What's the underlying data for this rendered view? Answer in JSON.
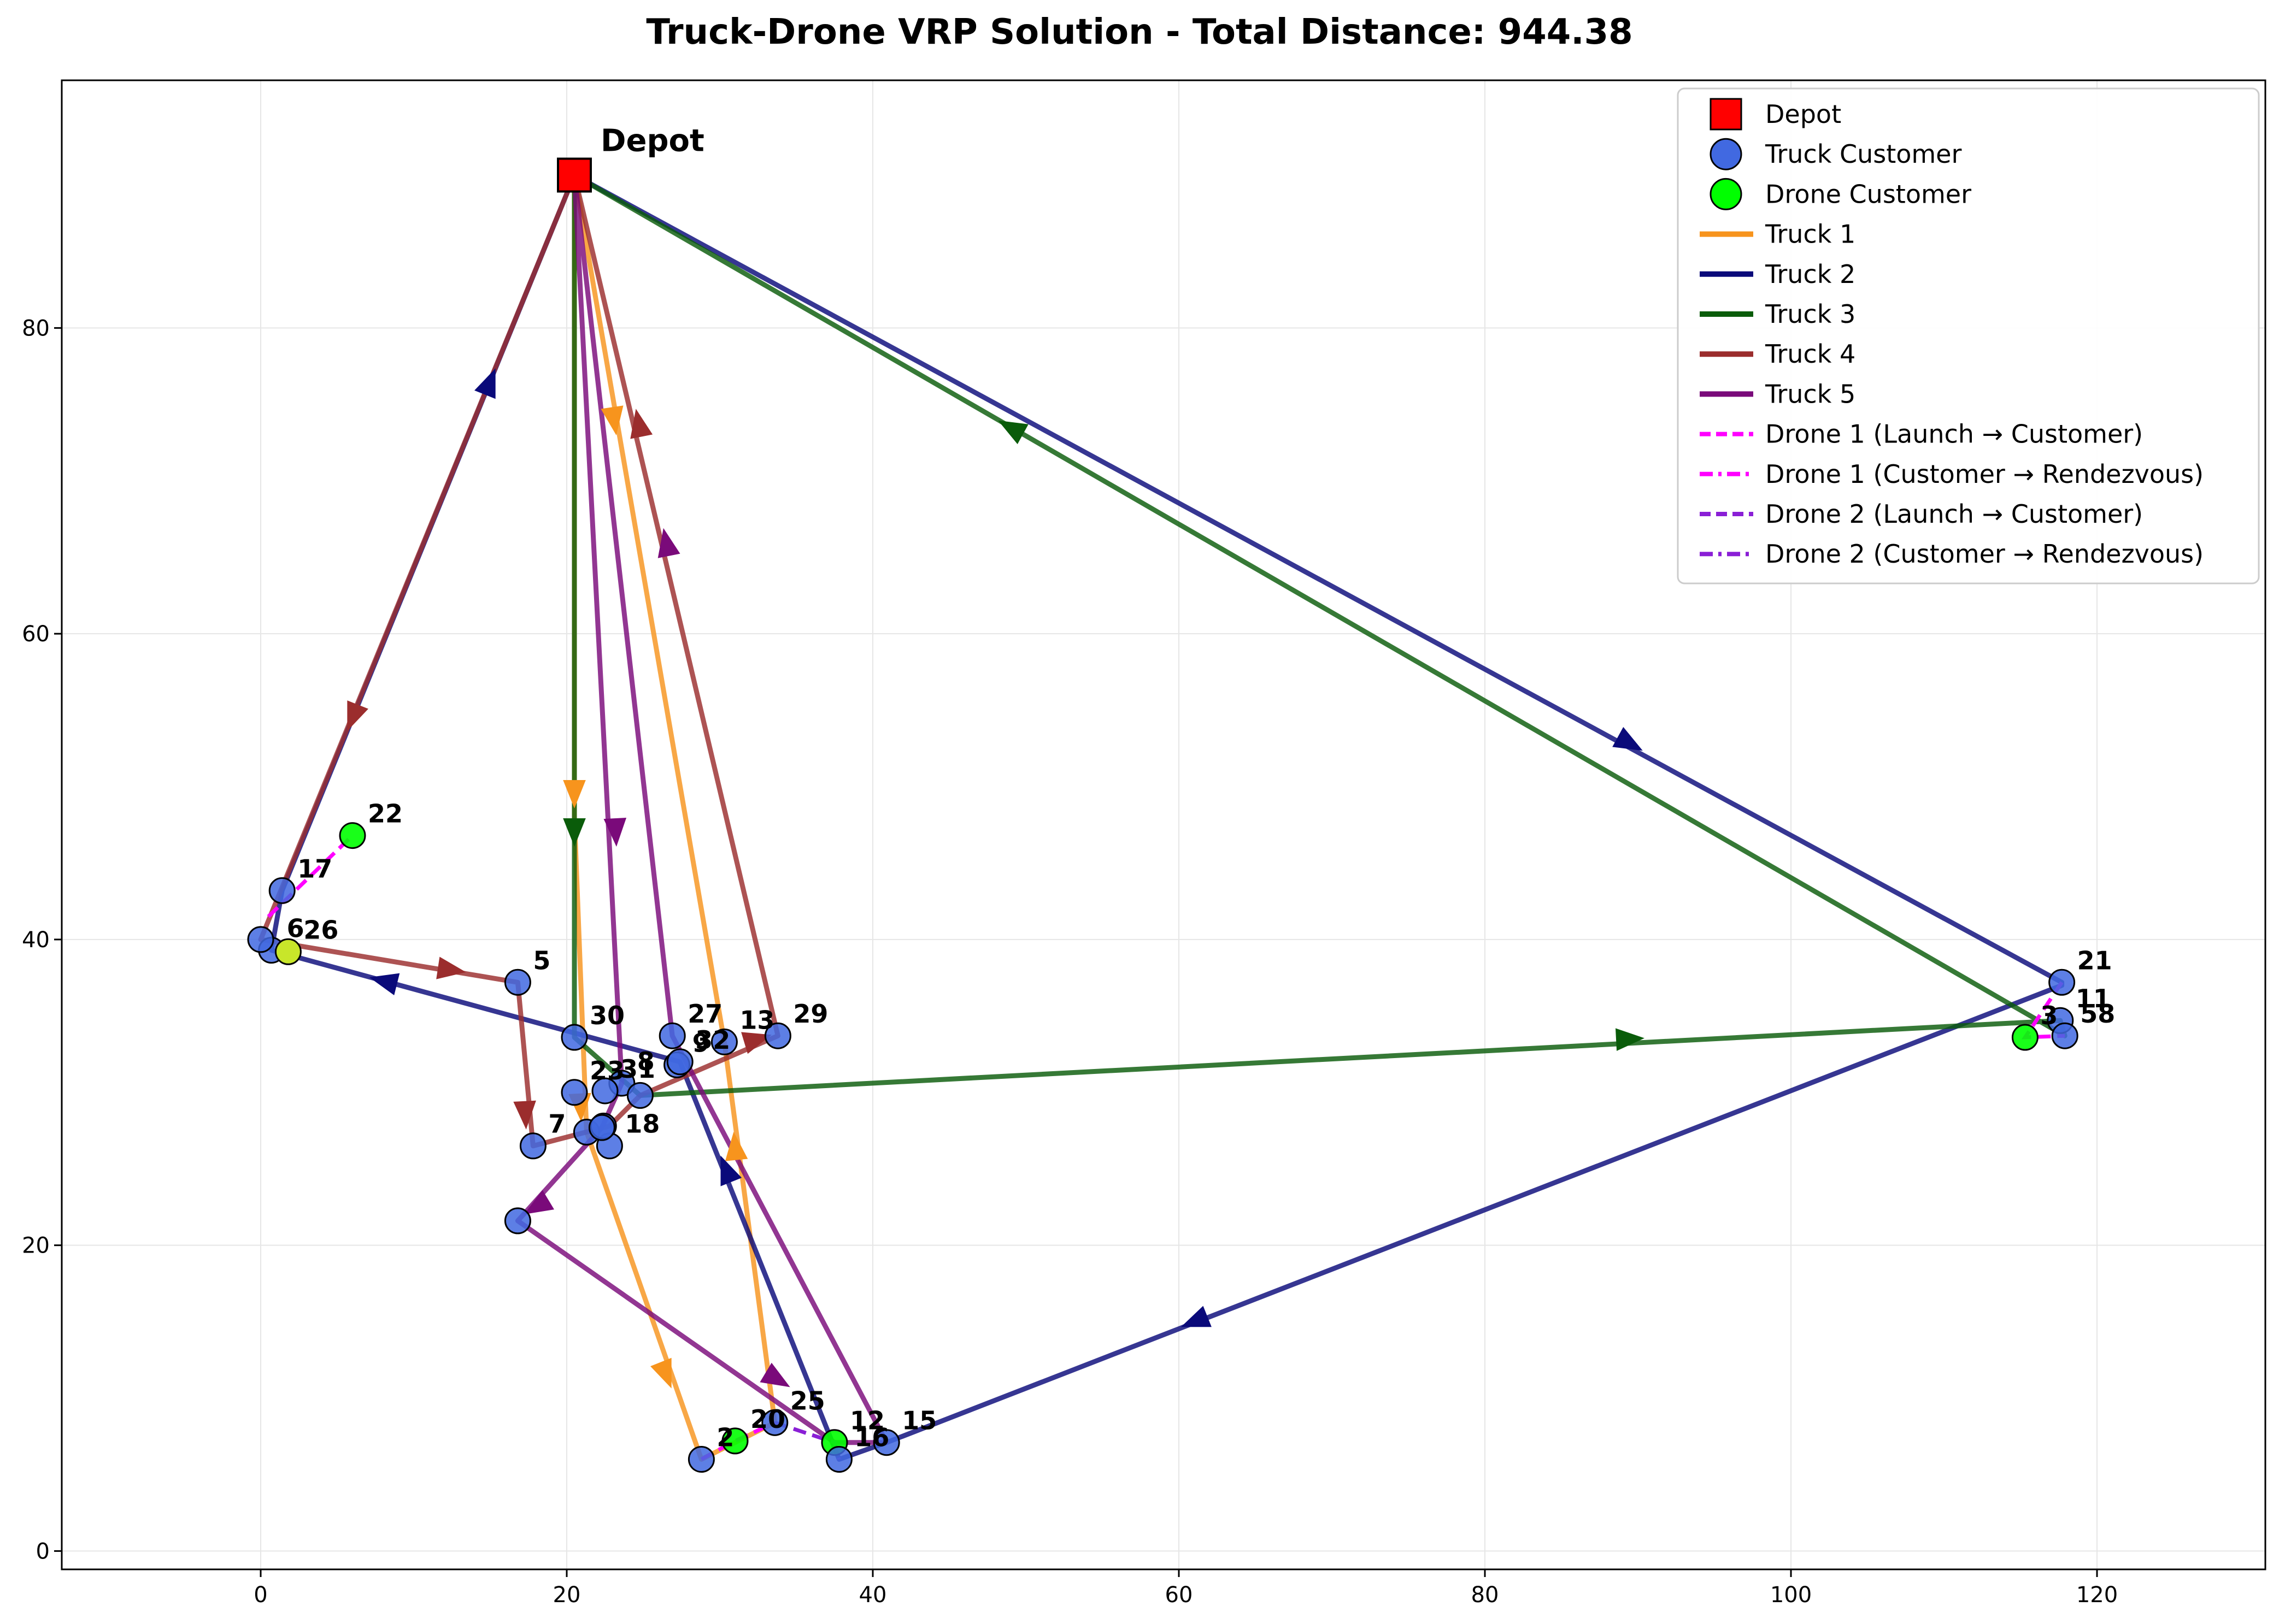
{
  "chart_data": {
    "type": "scatter",
    "title": "Truck-Drone VRP Solution - Total Distance: 944.38",
    "xlim": [
      -13,
      131
    ],
    "ylim": [
      -1.2,
      96.2
    ],
    "x_ticks": [
      0,
      20,
      40,
      60,
      80,
      100,
      120
    ],
    "y_ticks": [
      0,
      20,
      40,
      60,
      80
    ],
    "grid": true,
    "legend_position": "top-right",
    "colors": {
      "depot": "#ff0000",
      "truck_customer": "#4169e1",
      "drone_customer": "#00ff00",
      "truck1": "#f7941d",
      "truck2": "#0a0a7a",
      "truck3": "#0a5c0a",
      "truck4": "#9b2d2d",
      "truck5": "#7a0a7a",
      "drone1": "#ff00ff",
      "drone2": "#8a1fd6"
    },
    "legend": [
      {
        "label": "Depot",
        "kind": "depot"
      },
      {
        "label": "Truck Customer",
        "kind": "truck_customer"
      },
      {
        "label": "Drone Customer",
        "kind": "drone_customer"
      },
      {
        "label": "Truck 1",
        "kind": "truck1"
      },
      {
        "label": "Truck 2",
        "kind": "truck2"
      },
      {
        "label": "Truck 3",
        "kind": "truck3"
      },
      {
        "label": "Truck 4",
        "kind": "truck4"
      },
      {
        "label": "Truck 5",
        "kind": "truck5"
      },
      {
        "label": "Drone 1 (Launch → Customer)",
        "kind": "drone1_dash"
      },
      {
        "label": "Drone 1 (Customer → Rendezvous)",
        "kind": "drone1_dashdot"
      },
      {
        "label": "Drone 2 (Launch → Customer)",
        "kind": "drone2_dash"
      },
      {
        "label": "Drone 2 (Customer → Rendezvous)",
        "kind": "drone2_dashdot"
      }
    ],
    "depot": {
      "label": "Depot",
      "x": 20.5,
      "y": 90
    },
    "customers": [
      {
        "id": "2",
        "x": 28.8,
        "y": 6.0,
        "type": "truck"
      },
      {
        "id": "5",
        "x": 16.8,
        "y": 37.2,
        "type": "truck"
      },
      {
        "id": "6",
        "x": 0.7,
        "y": 39.3,
        "type": "truck"
      },
      {
        "id": "",
        "x": 0.0,
        "y": 40.0,
        "type": "truck"
      },
      {
        "id": "7",
        "x": 17.8,
        "y": 26.5,
        "type": "truck"
      },
      {
        "id": "8",
        "x": 23.6,
        "y": 30.6,
        "type": "truck"
      },
      {
        "id": "9",
        "x": 27.2,
        "y": 31.8,
        "type": "truck"
      },
      {
        "id": "29",
        "x": 33.8,
        "y": 33.7,
        "type": "truck"
      },
      {
        "id": "11",
        "x": 117.6,
        "y": 34.7,
        "type": "truck"
      },
      {
        "id": "58",
        "x": 117.9,
        "y": 33.7,
        "type": "truck"
      },
      {
        "id": "12",
        "x": 37.5,
        "y": 7.1,
        "type": "drone"
      },
      {
        "id": "13",
        "x": 30.3,
        "y": 33.3,
        "type": "truck"
      },
      {
        "id": "15",
        "x": 40.9,
        "y": 7.1,
        "type": "truck"
      },
      {
        "id": "16",
        "x": 37.8,
        "y": 6.0,
        "type": "truck"
      },
      {
        "id": "17",
        "x": 1.4,
        "y": 43.2,
        "type": "truck"
      },
      {
        "id": "18",
        "x": 22.8,
        "y": 26.5,
        "type": "truck"
      },
      {
        "id": "20",
        "x": 31.0,
        "y": 7.2,
        "type": "drone"
      },
      {
        "id": "21",
        "x": 117.7,
        "y": 37.2,
        "type": "truck"
      },
      {
        "id": "22",
        "x": 6.0,
        "y": 46.8,
        "type": "drone"
      },
      {
        "id": "23",
        "x": 20.5,
        "y": 30.0,
        "type": "truck"
      },
      {
        "id": "25",
        "x": 33.6,
        "y": 8.4,
        "type": "truck"
      },
      {
        "id": "26",
        "x": 1.8,
        "y": 39.2,
        "type": "drone_overlap"
      },
      {
        "id": "27",
        "x": 26.9,
        "y": 33.7,
        "type": "truck"
      },
      {
        "id": "30",
        "x": 20.5,
        "y": 33.6,
        "type": "truck"
      },
      {
        "id": "31",
        "x": 22.5,
        "y": 30.1,
        "type": "truck"
      },
      {
        "id": "32",
        "x": 27.4,
        "y": 32.0,
        "type": "truck"
      },
      {
        "id": "",
        "x": 24.8,
        "y": 29.8,
        "type": "truck"
      },
      {
        "id": "",
        "x": 21.3,
        "y": 27.4,
        "type": "truck"
      },
      {
        "id": "",
        "x": 22.4,
        "y": 27.8,
        "type": "truck"
      },
      {
        "id": "",
        "x": 22.3,
        "y": 27.7,
        "type": "truck"
      },
      {
        "id": "",
        "x": 16.8,
        "y": 21.6,
        "type": "truck"
      },
      {
        "id": "3",
        "x": 115.3,
        "y": 33.6,
        "type": "drone"
      }
    ],
    "routes": [
      {
        "name": "Truck 1",
        "kind": "truck1",
        "points": [
          [
            20.5,
            90
          ],
          [
            20.5,
            48
          ],
          [
            21.3,
            27.4
          ],
          [
            28.8,
            6.0
          ],
          [
            33.6,
            8.4
          ],
          [
            30.3,
            33.3
          ],
          [
            20.5,
            90
          ]
        ]
      },
      {
        "name": "Truck 2",
        "kind": "truck2",
        "points": [
          [
            20.5,
            90
          ],
          [
            117.7,
            37.2
          ],
          [
            117.7,
            37.0
          ],
          [
            40.9,
            7.1
          ],
          [
            37.8,
            6.0
          ],
          [
            27.4,
            32.0
          ],
          [
            0.7,
            39.3
          ],
          [
            1.4,
            43.2
          ],
          [
            20.5,
            90
          ]
        ]
      },
      {
        "name": "Truck 3",
        "kind": "truck3",
        "points": [
          [
            20.5,
            90
          ],
          [
            117.9,
            33.7
          ],
          [
            117.6,
            34.7
          ],
          [
            24.8,
            29.8
          ],
          [
            20.5,
            33.6
          ],
          [
            20.5,
            90
          ]
        ]
      },
      {
        "name": "Truck 4",
        "kind": "truck4",
        "points": [
          [
            20.5,
            90
          ],
          [
            0.0,
            40.0
          ],
          [
            16.8,
            37.2
          ],
          [
            17.8,
            26.5
          ],
          [
            22.8,
            27.8
          ],
          [
            24.8,
            29.8
          ],
          [
            33.8,
            33.7
          ],
          [
            20.5,
            90
          ]
        ]
      },
      {
        "name": "Truck 5",
        "kind": "truck5",
        "points": [
          [
            20.5,
            90
          ],
          [
            23.6,
            30.6
          ],
          [
            22.3,
            27.7
          ],
          [
            16.8,
            21.6
          ],
          [
            37.5,
            7.1
          ],
          [
            40.9,
            7.1
          ],
          [
            26.9,
            33.7
          ],
          [
            20.5,
            90
          ]
        ]
      }
    ],
    "drones": [
      {
        "kind": "drone1",
        "points": [
          [
            0.5,
            41.5
          ],
          [
            6.0,
            46.8
          ]
        ]
      },
      {
        "kind": "drone1",
        "points": [
          [
            28.8,
            6.0
          ],
          [
            31.0,
            7.2
          ],
          [
            33.6,
            8.4
          ]
        ]
      },
      {
        "kind": "drone1",
        "points": [
          [
            117.7,
            37.2
          ],
          [
            115.3,
            33.6
          ],
          [
            117.9,
            33.7
          ]
        ]
      },
      {
        "kind": "drone2",
        "points": [
          [
            33.6,
            8.4
          ],
          [
            37.5,
            7.1
          ],
          [
            37.8,
            6.0
          ]
        ]
      }
    ],
    "arrows": [
      {
        "kind": "truck1",
        "x": 20.5,
        "y": 49.5,
        "dir": [
          0,
          -1
        ]
      },
      {
        "kind": "truck1",
        "x": 23.1,
        "y": 73.9,
        "dir": [
          0.15,
          -1
        ]
      },
      {
        "kind": "truck1",
        "x": 26.5,
        "y": 11.5,
        "dir": [
          0.4,
          -1
        ]
      },
      {
        "kind": "truck1",
        "x": 31.0,
        "y": 26.5,
        "dir": [
          -0.1,
          1
        ]
      },
      {
        "kind": "truck1",
        "x": 20.9,
        "y": 29.0,
        "dir": [
          0.05,
          -1
        ]
      },
      {
        "kind": "truck2",
        "x": 15.0,
        "y": 76.5,
        "dir": [
          0.4,
          1
        ]
      },
      {
        "kind": "truck2",
        "x": 89.5,
        "y": 52.8,
        "dir": [
          1,
          -0.55
        ]
      },
      {
        "kind": "truck2",
        "x": 61.0,
        "y": 15.0,
        "dir": [
          -1,
          -0.4
        ]
      },
      {
        "kind": "truck2",
        "x": 30.4,
        "y": 25.0,
        "dir": [
          -0.4,
          1
        ]
      },
      {
        "kind": "truck2",
        "x": 8.0,
        "y": 37.3,
        "dir": [
          -1,
          0.25
        ]
      },
      {
        "kind": "truck3",
        "x": 49.0,
        "y": 73.5,
        "dir": [
          -1,
          0.55
        ]
      },
      {
        "kind": "truck3",
        "x": 89.5,
        "y": 33.5,
        "dir": [
          1,
          0.05
        ]
      },
      {
        "kind": "truck3",
        "x": 20.5,
        "y": 47.0,
        "dir": [
          0,
          -1
        ]
      },
      {
        "kind": "truck4",
        "x": 6.0,
        "y": 54.5,
        "dir": [
          -0.4,
          -1
        ]
      },
      {
        "kind": "truck4",
        "x": 12.5,
        "y": 38.0,
        "dir": [
          1,
          -0.15
        ]
      },
      {
        "kind": "truck4",
        "x": 17.3,
        "y": 28.5,
        "dir": [
          0.05,
          -1
        ]
      },
      {
        "kind": "truck4",
        "x": 32.5,
        "y": 33.5,
        "dir": [
          1,
          0.3
        ]
      },
      {
        "kind": "truck4",
        "x": 24.7,
        "y": 73.8,
        "dir": [
          -0.2,
          1
        ]
      },
      {
        "kind": "truck5",
        "x": 23.2,
        "y": 47.0,
        "dir": [
          0.05,
          -1
        ]
      },
      {
        "kind": "truck5",
        "x": 18.0,
        "y": 22.5,
        "dir": [
          -1,
          -0.6
        ]
      },
      {
        "kind": "truck5",
        "x": 33.8,
        "y": 11.2,
        "dir": [
          1,
          -0.6
        ]
      },
      {
        "kind": "truck5",
        "x": 26.5,
        "y": 66.0,
        "dir": [
          -0.2,
          1
        ]
      }
    ]
  }
}
